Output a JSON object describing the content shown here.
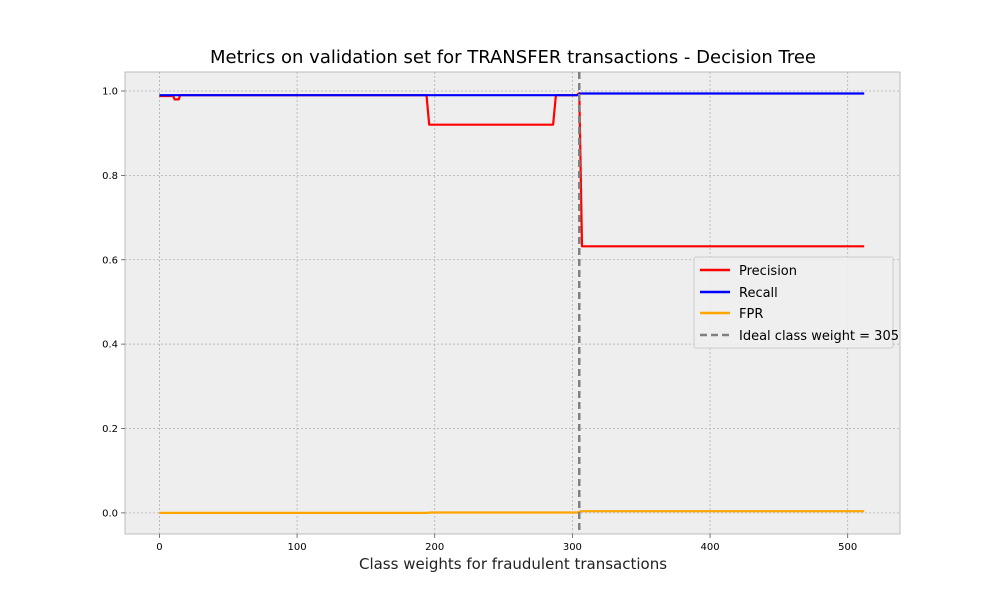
{
  "chart_data": {
    "type": "line",
    "title": "Metrics on validation set for TRANSFER transactions - Decision Tree",
    "xlabel": "Class weights for fraudulent transactions",
    "ylabel": "",
    "xlim": [
      -25,
      538
    ],
    "ylim": [
      -0.05,
      1.045
    ],
    "xticks": [
      0,
      100,
      200,
      300,
      400,
      500
    ],
    "yticks": [
      0.0,
      0.2,
      0.4,
      0.6,
      0.8,
      1.0
    ],
    "grid": true,
    "legend_position": "center-right",
    "series": [
      {
        "name": "Precision",
        "color": "#ff0000",
        "x": [
          0,
          10,
          11,
          14,
          15,
          194,
          196,
          286,
          288,
          303,
          305,
          307,
          512
        ],
        "y": [
          0.988,
          0.988,
          0.98,
          0.98,
          0.99,
          0.99,
          0.92,
          0.92,
          0.99,
          0.99,
          0.995,
          0.632,
          0.632
        ]
      },
      {
        "name": "Recall",
        "color": "#0000ff",
        "x": [
          0,
          304,
          306,
          512
        ],
        "y": [
          0.99,
          0.99,
          0.994,
          0.994
        ]
      },
      {
        "name": "FPR",
        "color": "#ffa500",
        "x": [
          0,
          195,
          196,
          290,
          304,
          306,
          512
        ],
        "y": [
          0.0,
          0.0,
          0.001,
          0.001,
          0.001,
          0.004,
          0.004
        ]
      }
    ],
    "vline": {
      "name": "Ideal class weight = 305",
      "x": 305,
      "color": "#808080"
    }
  }
}
